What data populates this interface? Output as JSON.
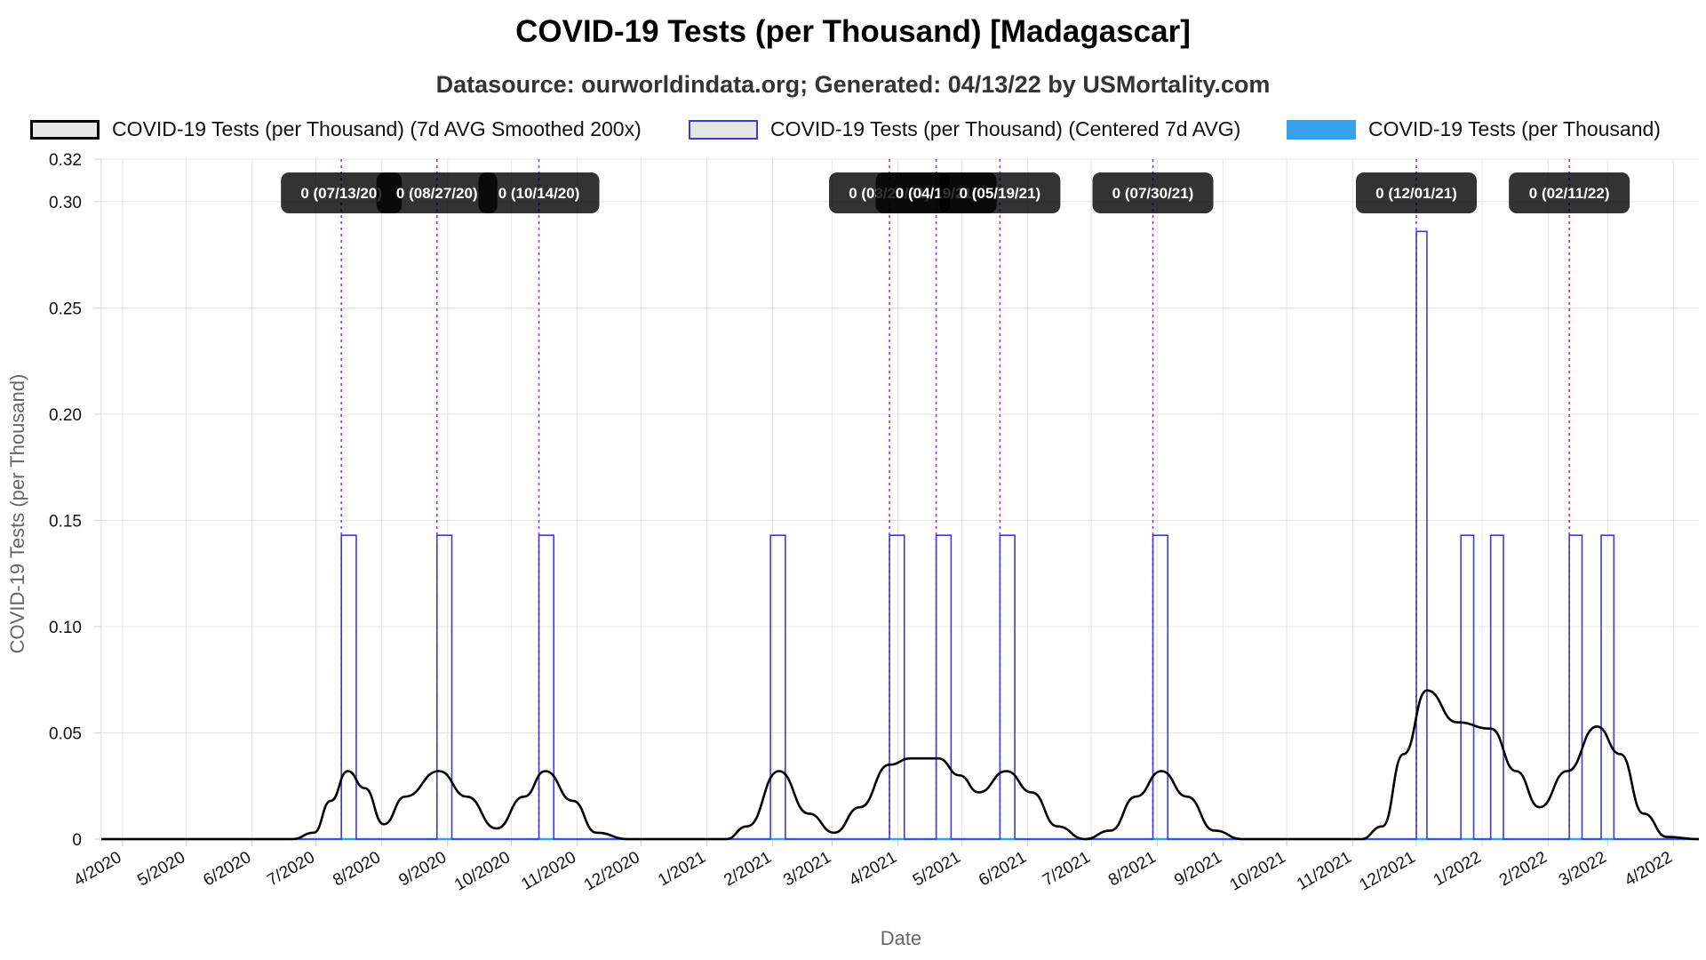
{
  "chart_data": {
    "type": "line",
    "title": "COVID-19 Tests (per Thousand) [Madagascar]",
    "subtitle": "Datasource: ourworldindata.org; Generated: 04/13/22 by USMortality.com",
    "xlabel": "Date",
    "ylabel": "COVID-19 Tests (per Thousand)",
    "ylim": [
      0,
      0.32
    ],
    "y_ticks": [
      0,
      0.05,
      0.1,
      0.15,
      0.2,
      0.25,
      0.3,
      0.32
    ],
    "y_tick_labels": [
      "0",
      "0.05",
      "0.10",
      "0.15",
      "0.20",
      "0.25",
      "0.30",
      "0.32"
    ],
    "x_range": [
      "2020-03-22",
      "2022-04-13"
    ],
    "x_ticks": [
      "2020-04-01",
      "2020-05-01",
      "2020-06-01",
      "2020-07-01",
      "2020-08-01",
      "2020-09-01",
      "2020-10-01",
      "2020-11-01",
      "2020-12-01",
      "2021-01-01",
      "2021-02-01",
      "2021-03-01",
      "2021-04-01",
      "2021-05-01",
      "2021-06-01",
      "2021-07-01",
      "2021-08-01",
      "2021-09-01",
      "2021-10-01",
      "2021-11-01",
      "2021-12-01",
      "2022-01-01",
      "2022-02-01",
      "2022-03-01",
      "2022-04-01"
    ],
    "x_tick_labels": [
      "4/2020",
      "5/2020",
      "6/2020",
      "7/2020",
      "8/2020",
      "9/2020",
      "10/2020",
      "11/2020",
      "12/2020",
      "1/2021",
      "2/2021",
      "3/2021",
      "4/2021",
      "5/2021",
      "6/2021",
      "7/2021",
      "8/2021",
      "9/2021",
      "10/2021",
      "11/2021",
      "12/2021",
      "1/2022",
      "2/2022",
      "3/2022",
      "4/2022"
    ],
    "grid": true,
    "legend_position": "top",
    "series": [
      {
        "name": "COVID-19 Tests (per Thousand) (7d AVG Smoothed 200x)",
        "style": "smooth-line",
        "color": "#000000",
        "points": [
          [
            "2020-03-22",
            0
          ],
          [
            "2020-06-20",
            0
          ],
          [
            "2020-06-30",
            0.003
          ],
          [
            "2020-07-08",
            0.018
          ],
          [
            "2020-07-16",
            0.032
          ],
          [
            "2020-07-24",
            0.024
          ],
          [
            "2020-08-02",
            0.007
          ],
          [
            "2020-08-12",
            0.02
          ],
          [
            "2020-08-28",
            0.032
          ],
          [
            "2020-09-10",
            0.02
          ],
          [
            "2020-09-24",
            0.005
          ],
          [
            "2020-10-07",
            0.02
          ],
          [
            "2020-10-17",
            0.032
          ],
          [
            "2020-10-30",
            0.018
          ],
          [
            "2020-11-10",
            0.003
          ],
          [
            "2020-11-25",
            0
          ],
          [
            "2021-01-10",
            0
          ],
          [
            "2021-01-20",
            0.006
          ],
          [
            "2021-02-04",
            0.032
          ],
          [
            "2021-02-18",
            0.012
          ],
          [
            "2021-03-02",
            0.003
          ],
          [
            "2021-03-14",
            0.015
          ],
          [
            "2021-03-28",
            0.035
          ],
          [
            "2021-04-07",
            0.038
          ],
          [
            "2021-04-20",
            0.038
          ],
          [
            "2021-04-30",
            0.03
          ],
          [
            "2021-05-09",
            0.022
          ],
          [
            "2021-05-22",
            0.032
          ],
          [
            "2021-06-03",
            0.022
          ],
          [
            "2021-06-15",
            0.006
          ],
          [
            "2021-06-28",
            0
          ],
          [
            "2021-07-10",
            0.004
          ],
          [
            "2021-07-22",
            0.02
          ],
          [
            "2021-08-03",
            0.032
          ],
          [
            "2021-08-15",
            0.02
          ],
          [
            "2021-08-28",
            0.004
          ],
          [
            "2021-09-10",
            0
          ],
          [
            "2021-11-05",
            0
          ],
          [
            "2021-11-15",
            0.006
          ],
          [
            "2021-11-25",
            0.04
          ],
          [
            "2021-12-06",
            0.07
          ],
          [
            "2021-12-20",
            0.055
          ],
          [
            "2022-01-05",
            0.052
          ],
          [
            "2022-01-17",
            0.032
          ],
          [
            "2022-01-28",
            0.015
          ],
          [
            "2022-02-10",
            0.032
          ],
          [
            "2022-02-24",
            0.053
          ],
          [
            "2022-03-07",
            0.04
          ],
          [
            "2022-03-18",
            0.012
          ],
          [
            "2022-03-29",
            0.001
          ],
          [
            "2022-04-13",
            0
          ]
        ]
      },
      {
        "name": "COVID-19 Tests (per Thousand) (Centered 7d AVG)",
        "style": "pulses",
        "color": "#3b3bd9",
        "baseline": 0,
        "pulses": [
          {
            "start": "2020-07-13",
            "end": "2020-07-20",
            "value": 0.143
          },
          {
            "start": "2020-08-27",
            "end": "2020-09-03",
            "value": 0.143
          },
          {
            "start": "2020-10-14",
            "end": "2020-10-21",
            "value": 0.143
          },
          {
            "start": "2021-01-31",
            "end": "2021-02-07",
            "value": 0.143
          },
          {
            "start": "2021-03-28",
            "end": "2021-04-04",
            "value": 0.143
          },
          {
            "start": "2021-04-19",
            "end": "2021-04-26",
            "value": 0.143
          },
          {
            "start": "2021-05-19",
            "end": "2021-05-26",
            "value": 0.143
          },
          {
            "start": "2021-07-30",
            "end": "2021-08-06",
            "value": 0.143
          },
          {
            "start": "2021-12-01",
            "end": "2021-12-06",
            "value": 0.286
          },
          {
            "start": "2021-12-22",
            "end": "2021-12-28",
            "value": 0.143
          },
          {
            "start": "2022-01-05",
            "end": "2022-01-11",
            "value": 0.143
          },
          {
            "start": "2022-02-11",
            "end": "2022-02-17",
            "value": 0.143
          },
          {
            "start": "2022-02-26",
            "end": "2022-03-04",
            "value": 0.143
          }
        ]
      },
      {
        "name": "COVID-19 Tests (per Thousand)",
        "style": "baseline-bars",
        "color": "#36a2eb",
        "value": 0
      }
    ],
    "annotations": [
      {
        "date": "2020-07-13",
        "label": "0 (07/13/20)"
      },
      {
        "date": "2020-08-27",
        "label": "0 (08/27/20)"
      },
      {
        "date": "2020-10-14",
        "label": "0 (10/14/20)"
      },
      {
        "date": "2021-03-28",
        "label": "0 (03/28/21)"
      },
      {
        "date": "2021-04-19",
        "label": "0 (04/19/21)"
      },
      {
        "date": "2021-05-19",
        "label": "0 (05/19/21)"
      },
      {
        "date": "2021-07-30",
        "label": "0 (07/30/21)"
      },
      {
        "date": "2021-12-01",
        "label": "0 (12/01/21)"
      },
      {
        "date": "2022-02-11",
        "label": "0 (02/11/22)"
      }
    ],
    "annotation_color": "#9b30ff"
  }
}
